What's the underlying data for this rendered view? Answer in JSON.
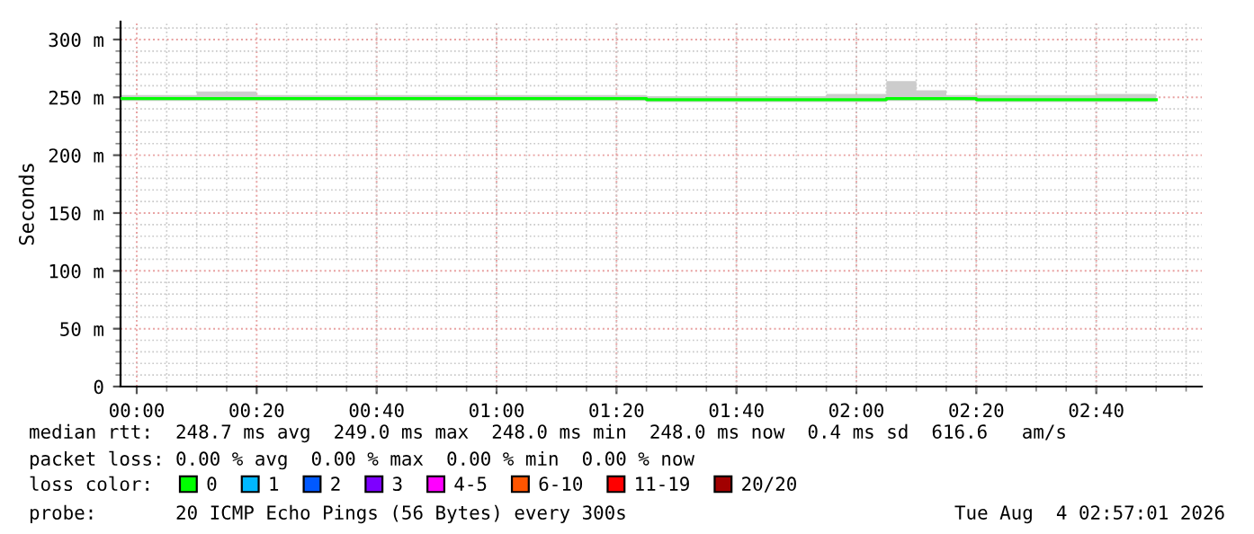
{
  "chart_data": {
    "type": "step",
    "ylabel": "Seconds",
    "xlim": [
      -0.045,
      2.96
    ],
    "ylim": [
      0,
      315.5
    ],
    "xticks": [
      {
        "value": 0,
        "label": "00:00"
      },
      {
        "value": 0.3333,
        "label": "00:20"
      },
      {
        "value": 0.6667,
        "label": "00:40"
      },
      {
        "value": 1,
        "label": "01:00"
      },
      {
        "value": 1.3333,
        "label": "01:20"
      },
      {
        "value": 1.6667,
        "label": "01:40"
      },
      {
        "value": 2,
        "label": "02:00"
      },
      {
        "value": 2.3333,
        "label": "02:20"
      },
      {
        "value": 2.6667,
        "label": "02:40"
      }
    ],
    "yticks": [
      0,
      {
        "value": 50,
        "label": "50 m"
      },
      {
        "value": 100,
        "label": "100 m"
      },
      {
        "value": 150,
        "label": "150 m"
      },
      {
        "value": 200,
        "label": "200 m"
      },
      {
        "value": 250,
        "label": "250 m"
      },
      {
        "value": 300,
        "label": "300 m"
      }
    ],
    "x": [
      -0.045,
      0,
      0.0833,
      0.1667,
      0.25,
      0.3333,
      0.4167,
      0.5,
      0.5833,
      0.6667,
      0.75,
      0.8333,
      0.9167,
      1,
      1.0833,
      1.1667,
      1.25,
      1.3333,
      1.4167,
      1.5,
      1.5833,
      1.6667,
      1.75,
      1.8333,
      1.9167,
      2,
      2.0833,
      2.1667,
      2.25,
      2.3333,
      2.4167,
      2.5,
      2.5833,
      2.6667,
      2.75,
      2.8333
    ],
    "series": [
      {
        "name": "0",
        "color": "#00ff00",
        "values": [
          249,
          249,
          249,
          249,
          249,
          249,
          249,
          249,
          249,
          249,
          249,
          249,
          249,
          249,
          249,
          249,
          249,
          249,
          248,
          248,
          248,
          248,
          248,
          248,
          248,
          248,
          249,
          249,
          249,
          248,
          248,
          248,
          248,
          248,
          248,
          248
        ],
        "lower": [
          247,
          247,
          247,
          247,
          247,
          247,
          247,
          247,
          247,
          247,
          247,
          247,
          247,
          247,
          247,
          247,
          247,
          247,
          246,
          246,
          246,
          246,
          246,
          246,
          246,
          246,
          247,
          247,
          247,
          246,
          246,
          246,
          246,
          246,
          246,
          246
        ],
        "upper": [
          252,
          252,
          252,
          255,
          255,
          252,
          252,
          252,
          252,
          252,
          252,
          252,
          252,
          252,
          252,
          252,
          252,
          252,
          251,
          251,
          251,
          251,
          251,
          251,
          253,
          253,
          264,
          256,
          252,
          252,
          252,
          252,
          252,
          253,
          253,
          253
        ]
      },
      {
        "name": "1",
        "color": "#00b8ff",
        "values": [
          null,
          null,
          null,
          null,
          null,
          null,
          null,
          null,
          null,
          null,
          null,
          null,
          null,
          null,
          null,
          null,
          null,
          null,
          null,
          null,
          null,
          null,
          null,
          null,
          null,
          null,
          null,
          null,
          null,
          null,
          null,
          null,
          null,
          null,
          null,
          null
        ]
      },
      {
        "name": "2",
        "color": "#0059ff",
        "values": [
          null,
          null,
          null,
          null,
          null,
          null,
          null,
          null,
          null,
          null,
          null,
          null,
          null,
          null,
          null,
          null,
          null,
          null,
          null,
          null,
          null,
          null,
          null,
          null,
          null,
          null,
          null,
          null,
          null,
          null,
          null,
          null,
          null,
          null,
          null,
          null
        ]
      },
      {
        "name": "3",
        "color": "#7e00ff",
        "values": [
          null,
          null,
          null,
          null,
          null,
          null,
          null,
          null,
          null,
          null,
          null,
          null,
          null,
          null,
          null,
          null,
          null,
          null,
          null,
          null,
          null,
          null,
          null,
          null,
          null,
          null,
          null,
          null,
          null,
          null,
          null,
          null,
          null,
          null,
          null,
          null
        ]
      },
      {
        "name": "4-5",
        "color": "#ff00ff",
        "values": [
          null,
          null,
          null,
          null,
          null,
          null,
          null,
          null,
          null,
          null,
          null,
          null,
          null,
          null,
          null,
          null,
          null,
          null,
          null,
          null,
          null,
          null,
          null,
          null,
          null,
          null,
          null,
          null,
          null,
          null,
          null,
          null,
          null,
          null,
          null,
          null
        ]
      },
      {
        "name": "6-10",
        "color": "#ff5500",
        "values": [
          null,
          null,
          null,
          null,
          null,
          null,
          null,
          null,
          null,
          null,
          null,
          null,
          null,
          null,
          null,
          null,
          null,
          null,
          null,
          null,
          null,
          null,
          null,
          null,
          null,
          null,
          null,
          null,
          null,
          null,
          null,
          null,
          null,
          null,
          null,
          null
        ]
      },
      {
        "name": "11-19",
        "color": "#ff0000",
        "values": [
          null,
          null,
          null,
          null,
          null,
          null,
          null,
          null,
          null,
          null,
          null,
          null,
          null,
          null,
          null,
          null,
          null,
          null,
          null,
          null,
          null,
          null,
          null,
          null,
          null,
          null,
          null,
          null,
          null,
          null,
          null,
          null,
          null,
          null,
          null,
          null
        ]
      },
      {
        "name": "20/20",
        "color": "#a10000",
        "values": [
          null,
          null,
          null,
          null,
          null,
          null,
          null,
          null,
          null,
          null,
          null,
          null,
          null,
          null,
          null,
          null,
          null,
          null,
          null,
          null,
          null,
          null,
          null,
          null,
          null,
          null,
          null,
          null,
          null,
          null,
          null,
          null,
          null,
          null,
          null,
          null
        ]
      }
    ],
    "legend": "bottom",
    "grid": true,
    "annotations": [
      "median rtt:  248.7 ms avg  249.0 ms max  248.0 ms min  248.0 ms now  0.4 ms sd  616.6   am/s",
      "packet loss: 0.00 % avg  0.00 % max  0.00 % min  0.00 % now",
      "loss color:",
      "probe:       20 ICMP Echo Pings (56 Bytes) every 300s",
      "Tue Aug  4 02:57:01 2026"
    ]
  }
}
